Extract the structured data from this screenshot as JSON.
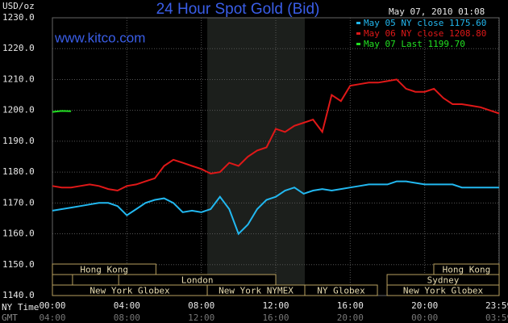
{
  "chart_data": {
    "type": "line",
    "title": "24 Hour Spot Gold (Bid)",
    "watermark": "www.kitco.com",
    "timestamp": "May 07, 2010 01:08",
    "y_label": "USD/oz",
    "x_label": "NY Time",
    "x2_label": "GMT",
    "background": "#000000",
    "grid": true,
    "shaded_x": [
      8.32,
      13.56
    ],
    "xlim": [
      0,
      24
    ],
    "xticks": [
      {
        "value": 0,
        "label": "00:00"
      },
      {
        "value": 4,
        "label": "04:00"
      },
      {
        "value": 8,
        "label": "08:00"
      },
      {
        "value": 12,
        "label": "12:00"
      },
      {
        "value": 16,
        "label": "16:00"
      },
      {
        "value": 20,
        "label": "20:00"
      },
      {
        "value": 23.983,
        "label": "23:59"
      }
    ],
    "x2ticks": [
      {
        "value": 0,
        "label": "04:00"
      },
      {
        "value": 4,
        "label": "08:00"
      },
      {
        "value": 8,
        "label": "12:00"
      },
      {
        "value": 12,
        "label": "16:00"
      },
      {
        "value": 16,
        "label": "20:00"
      },
      {
        "value": 20,
        "label": "00:00"
      },
      {
        "value": 23.983,
        "label": "03:59"
      }
    ],
    "ylim": [
      1140,
      1230
    ],
    "yticks": [
      {
        "value": 1140,
        "label": "1140.0"
      },
      {
        "value": 1150,
        "label": "1150.0"
      },
      {
        "value": 1160,
        "label": "1160.0"
      },
      {
        "value": 1170,
        "label": "1170.0"
      },
      {
        "value": 1180,
        "label": "1180.0"
      },
      {
        "value": 1190,
        "label": "1190.0"
      },
      {
        "value": 1200,
        "label": "1200.0"
      },
      {
        "value": 1210,
        "label": "1210.0"
      },
      {
        "value": 1220,
        "label": "1220.0"
      },
      {
        "value": 1230,
        "label": "1230.0"
      }
    ],
    "x": [
      0,
      0.5,
      1,
      1.5,
      2,
      2.5,
      3,
      3.5,
      4,
      4.5,
      5,
      5.5,
      6,
      6.5,
      7,
      7.5,
      8,
      8.5,
      9,
      9.5,
      10,
      10.5,
      11,
      11.5,
      12,
      12.5,
      13,
      13.5,
      14,
      14.5,
      15,
      15.5,
      16,
      16.5,
      17,
      17.5,
      18,
      18.5,
      19,
      19.5,
      20,
      20.5,
      21,
      21.5,
      22,
      22.5,
      23,
      23.5,
      24
    ],
    "series": [
      {
        "name": "May 05 NY close 1175.60",
        "color": "#22b8f0",
        "values": [
          1167.5,
          1168,
          1168.5,
          1169,
          1169.5,
          1170,
          1170,
          1169,
          1166,
          1168,
          1170,
          1171,
          1171.5,
          1170,
          1167,
          1167.5,
          1167,
          1168,
          1172,
          1168,
          1160,
          1163,
          1168,
          1171,
          1172,
          1174,
          1175,
          1173,
          1174,
          1174.5,
          1174,
          1174.5,
          1175,
          1175.5,
          1176,
          1176,
          1176,
          1177,
          1177,
          1176.5,
          1176,
          1176,
          1176,
          1176,
          1175,
          1175,
          1175,
          1175,
          1175
        ]
      },
      {
        "name": "May 06 NY close 1208.80",
        "color": "#e01818",
        "values": [
          1175.5,
          1175,
          1175,
          1175.5,
          1176,
          1175.5,
          1174.5,
          1174,
          1175.5,
          1176,
          1177,
          1178,
          1182,
          1184,
          1183,
          1182,
          1181,
          1179.5,
          1180,
          1183,
          1182,
          1185,
          1187,
          1188,
          1194,
          1193,
          1195,
          1196,
          1197,
          1193,
          1205,
          1203,
          1208,
          1208.5,
          1209,
          1209,
          1209.5,
          1210,
          1207,
          1206,
          1206,
          1207,
          1204,
          1202,
          1202,
          1201.5,
          1201,
          1200,
          1199
        ]
      },
      {
        "name": "May 07 Last 1199.70",
        "color": "#22e022",
        "values": [
          1199.5,
          1199.8,
          1199.7,
          null,
          null,
          null,
          null,
          null,
          null,
          null,
          null,
          null,
          null,
          null,
          null,
          null,
          null,
          null,
          null,
          null,
          null,
          null,
          null,
          null,
          null,
          null,
          null,
          null,
          null,
          null,
          null,
          null,
          null,
          null,
          null,
          null,
          null,
          null,
          null,
          null,
          null,
          null,
          null,
          null,
          null,
          null,
          null,
          null,
          null
        ]
      }
    ],
    "session_rows": [
      [
        {
          "label": "Hong Kong",
          "start": 0,
          "end": 5.56
        },
        {
          "label": "Hong Kong",
          "start": 20.49,
          "end": 24
        }
      ],
      [
        {
          "label": null,
          "start": 0,
          "end": 1.08
        },
        {
          "label": "London",
          "start": 3.56,
          "end": 12
        },
        {
          "label": "Sydney",
          "start": 17.98,
          "end": 24
        }
      ],
      [
        {
          "label": "New York Globex",
          "start": 0,
          "end": 8.32
        },
        {
          "label": "New York NYMEX",
          "start": 8.32,
          "end": 13.56
        },
        {
          "label": "NY Globex",
          "start": 13.56,
          "end": 17.46
        },
        {
          "label": "New York Globex",
          "start": 17.98,
          "end": 24
        }
      ]
    ]
  }
}
